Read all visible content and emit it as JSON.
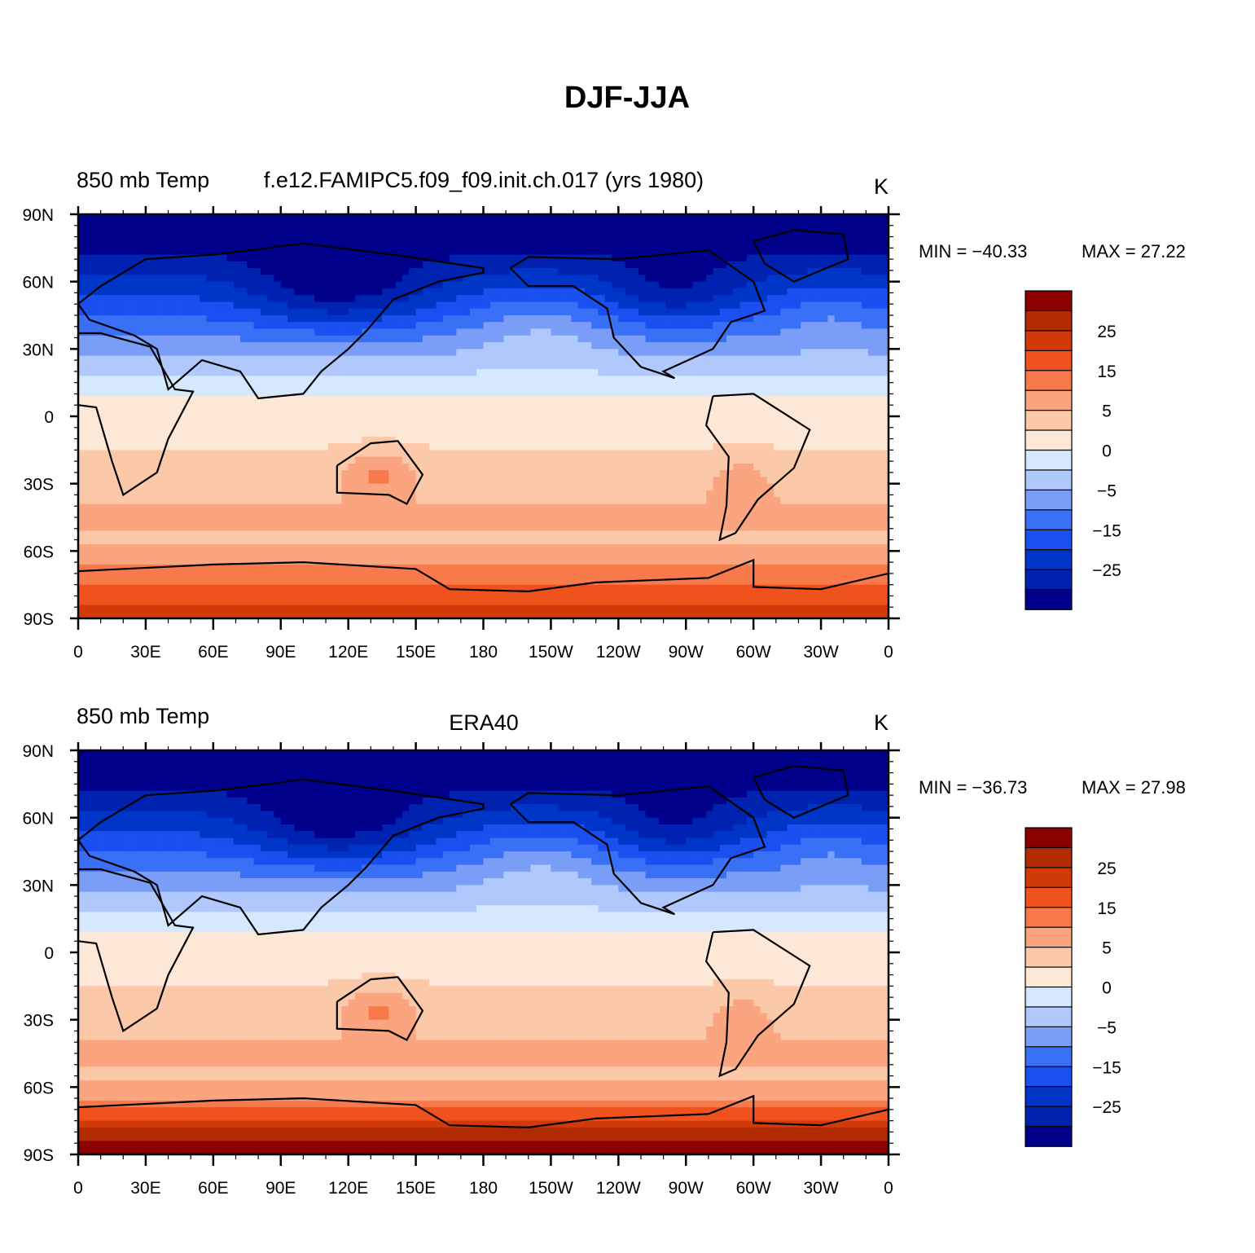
{
  "figure_title": "DJF-JJA",
  "palette": [
    "#00008b",
    "#0022b0",
    "#0036c8",
    "#1a4ff0",
    "#3a70f5",
    "#7a9ef7",
    "#b0c8fb",
    "#d6e8fe",
    "#fde8d8",
    "#fcc8aa",
    "#fba580",
    "#f87a4a",
    "#f0521d",
    "#d33a0a",
    "#b12a00",
    "#8b0000"
  ],
  "land_color": "#ffffff",
  "coast_color": "#000000",
  "chart_data": [
    {
      "type": "heatmap",
      "map_projection": "cylindrical-equidistant",
      "left_title": "850 mb Temp",
      "center_title": "f.e12.FAMIPC5.f09_f09.init.ch.017 (yrs 1980)",
      "right_title": "K",
      "min_label": "MIN = −40.33",
      "max_label": "MAX =   27.22",
      "min_value": -40.33,
      "max_value": 27.22,
      "lat_ticks": [
        "90N",
        "60N",
        "30N",
        "0",
        "30S",
        "60S",
        "90S"
      ],
      "lon_ticks": [
        "0",
        "30E",
        "60E",
        "90E",
        "120E",
        "150E",
        "180",
        "150W",
        "120W",
        "90W",
        "60W",
        "30W",
        "0"
      ],
      "colorbar_labels": [
        "25",
        "15",
        "5",
        "0",
        "−5",
        "−15",
        "−25"
      ],
      "colorbar_levels": [
        -35,
        -30,
        -25,
        -20,
        -15,
        -10,
        -5,
        0,
        5,
        10,
        15,
        20,
        25,
        30,
        35
      ],
      "units": "K"
    },
    {
      "type": "heatmap",
      "map_projection": "cylindrical-equidistant",
      "left_title": "850 mb Temp",
      "center_title": "ERA40",
      "right_title": "K",
      "min_label": "MIN = −36.73",
      "max_label": "MAX =   27.98",
      "min_value": -36.73,
      "max_value": 27.98,
      "lat_ticks": [
        "90N",
        "60N",
        "30N",
        "0",
        "30S",
        "60S",
        "90S"
      ],
      "lon_ticks": [
        "0",
        "30E",
        "60E",
        "90E",
        "120E",
        "150E",
        "180",
        "150W",
        "120W",
        "90W",
        "60W",
        "30W",
        "0"
      ],
      "colorbar_labels": [
        "25",
        "15",
        "5",
        "0",
        "−5",
        "−15",
        "−25"
      ],
      "colorbar_levels": [
        -35,
        -30,
        -25,
        -20,
        -15,
        -10,
        -5,
        0,
        5,
        10,
        15,
        20,
        25,
        30,
        35
      ],
      "units": "K"
    }
  ]
}
